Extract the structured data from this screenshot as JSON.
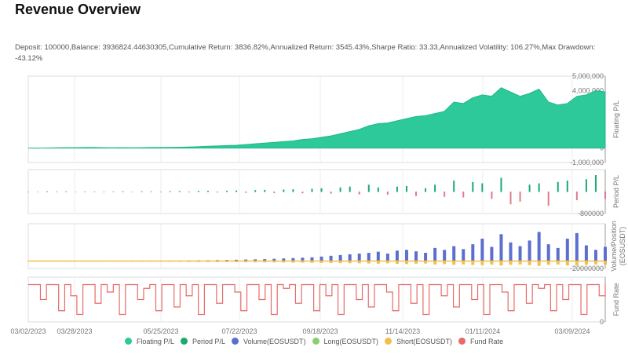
{
  "title": "Revenue Overview",
  "stats": "Deposit: 100000,Balance: 3936824.44630305,Cumulative Return: 3836.82%,Annualized Return: 3545.43%,Sharpe Ratio: 33.33,Annualized Volatility: 106.27%,Max Drawdown: -43.12%",
  "colors": {
    "floating": "#2ec99a",
    "period_pos": "#1aaa70",
    "period_neg": "#e07a8a",
    "volume": "#5b6fd0",
    "long": "#8ccf70",
    "short": "#f2c04a",
    "fund": "#e86a6a"
  },
  "chart_data": {
    "type": "line",
    "x_start": "03/02/2023",
    "x_end": "03/28/2024",
    "x_unit": "week",
    "x_ticks": [
      "03/02/2023",
      "03/28/2023",
      "05/25/2023",
      "07/22/2023",
      "09/18/2023",
      "11/14/2023",
      "01/11/2024",
      "03/09/2024"
    ],
    "panels": [
      {
        "name": "Floating P/L",
        "ylim": [
          -1000000,
          5000000
        ],
        "ticks": [
          "5,000,000",
          "4,000,000",
          "3,000,000",
          "2,000,000",
          "1,000,000",
          "0",
          "-1,000,000"
        ],
        "tick_values": [
          5000000,
          4000000,
          3000000,
          2000000,
          1000000,
          0,
          -1000000
        ],
        "values": [
          0,
          -5000,
          10000,
          20000,
          30000,
          30000,
          40000,
          40000,
          30000,
          20000,
          30000,
          20000,
          30000,
          40000,
          40000,
          50000,
          60000,
          80000,
          100000,
          130000,
          150000,
          180000,
          200000,
          250000,
          300000,
          350000,
          400000,
          450000,
          500000,
          600000,
          650000,
          750000,
          850000,
          1000000,
          1150000,
          1300000,
          1550000,
          1700000,
          1750000,
          1900000,
          2050000,
          2200000,
          2250000,
          2400000,
          2550000,
          3200000,
          3100000,
          3500000,
          3700000,
          3600000,
          4200000,
          3900000,
          3600000,
          3800000,
          4100000,
          3200000,
          3000000,
          3100000,
          3600000,
          3700000,
          4000000,
          3900000
        ]
      },
      {
        "name": "Period P/L",
        "ylim": [
          -800000,
          800000
        ],
        "ticks": [
          "-800000"
        ],
        "tick_values": [
          -800000
        ],
        "values": [
          0,
          -5000,
          10000,
          5000,
          8000,
          -3000,
          6000,
          4000,
          -8000,
          5000,
          10000,
          -6000,
          12000,
          8000,
          -9000,
          15000,
          20000,
          -15000,
          25000,
          30000,
          -20000,
          30000,
          40000,
          -30000,
          50000,
          60000,
          -40000,
          70000,
          80000,
          -50000,
          100000,
          120000,
          -60000,
          150000,
          180000,
          -90000,
          250000,
          150000,
          -100000,
          180000,
          200000,
          -150000,
          120000,
          250000,
          -180000,
          400000,
          -200000,
          350000,
          300000,
          -250000,
          500000,
          -450000,
          -350000,
          250000,
          300000,
          -500000,
          350000,
          400000,
          -300000,
          450000,
          600000,
          -250000
        ]
      },
      {
        "name": "Volume/Position (EOSUSDT)",
        "ylim": [
          -20000000,
          100000000
        ],
        "ticks": [
          "-20000000"
        ],
        "tick_values": [
          -20000000
        ],
        "volume": [
          0,
          100000,
          200000,
          300000,
          200000,
          300000,
          400000,
          300000,
          500000,
          400000,
          600000,
          500000,
          800000,
          700000,
          900000,
          1000000,
          1200000,
          1500000,
          1800000,
          2000000,
          2500000,
          3000000,
          3500000,
          4000000,
          4500000,
          5000000,
          6000000,
          7000000,
          8000000,
          9000000,
          10000000,
          12000000,
          14000000,
          16000000,
          18000000,
          20000000,
          22000000,
          25000000,
          20000000,
          28000000,
          30000000,
          26000000,
          22000000,
          35000000,
          30000000,
          40000000,
          32000000,
          45000000,
          60000000,
          38000000,
          72000000,
          50000000,
          40000000,
          55000000,
          78000000,
          45000000,
          35000000,
          60000000,
          75000000,
          42000000,
          30000000,
          38000000
        ],
        "short": [
          0,
          -100000,
          -200000,
          -200000,
          -300000,
          -300000,
          -400000,
          -400000,
          -500000,
          -500000,
          -600000,
          -600000,
          -700000,
          -800000,
          -900000,
          -1000000,
          -1100000,
          -1200000,
          -1400000,
          -1500000,
          -1700000,
          -1800000,
          -2000000,
          -2200000,
          -2400000,
          -2600000,
          -2800000,
          -3000000,
          -3200000,
          -3500000,
          -3800000,
          -4000000,
          -4200000,
          -4500000,
          -4800000,
          -5000000,
          -5500000,
          -6000000,
          -5000000,
          -6500000,
          -7000000,
          -6000000,
          -5500000,
          -8000000,
          -7000000,
          -9000000,
          -8000000,
          -9500000,
          -10000000,
          -8500000,
          -11000000,
          -9000000,
          -8000000,
          -10000000,
          -12000000,
          -9000000,
          -8000000,
          -10500000,
          -11000000,
          -9000000,
          -8000000,
          -9000000
        ]
      },
      {
        "name": "Fund Rate",
        "ylim": [
          0,
          1.2
        ],
        "ticks": [
          "0"
        ],
        "tick_values": [
          0
        ],
        "values": [
          1,
          1,
          0.6,
          1,
          1,
          0.3,
          1,
          0.7,
          0.2,
          1,
          1,
          0.5,
          1,
          0.8,
          1,
          0.2,
          1,
          1,
          0.6,
          0.9,
          1,
          0.3,
          1,
          1,
          0.4,
          1,
          0.7,
          1,
          0.2,
          1,
          1,
          0.5,
          1,
          1,
          0.8,
          0.3,
          1,
          1,
          0.6,
          1,
          0.2,
          1,
          0.9,
          1,
          0.5,
          1,
          1,
          0.3,
          1,
          0.7,
          1,
          0.2,
          1,
          1,
          0.6,
          1,
          0.4,
          1,
          1,
          0.8,
          0.3,
          1,
          1,
          0.5,
          1,
          0.2,
          1,
          1,
          0.7,
          1,
          0.4,
          1,
          1,
          0.6,
          1,
          0.2,
          1,
          1,
          0.8,
          0.3,
          1,
          1,
          0.5,
          1,
          0.9,
          1,
          0.3,
          1,
          0.6,
          1,
          1,
          0.2,
          1,
          1,
          0.7,
          1
        ]
      }
    ],
    "legend": [
      "Floating P/L",
      "Period P/L",
      "Volume(EOSUSDT)",
      "Long(EOSUSDT)",
      "Short(EOSUSDT)",
      "Fund Rate"
    ]
  }
}
